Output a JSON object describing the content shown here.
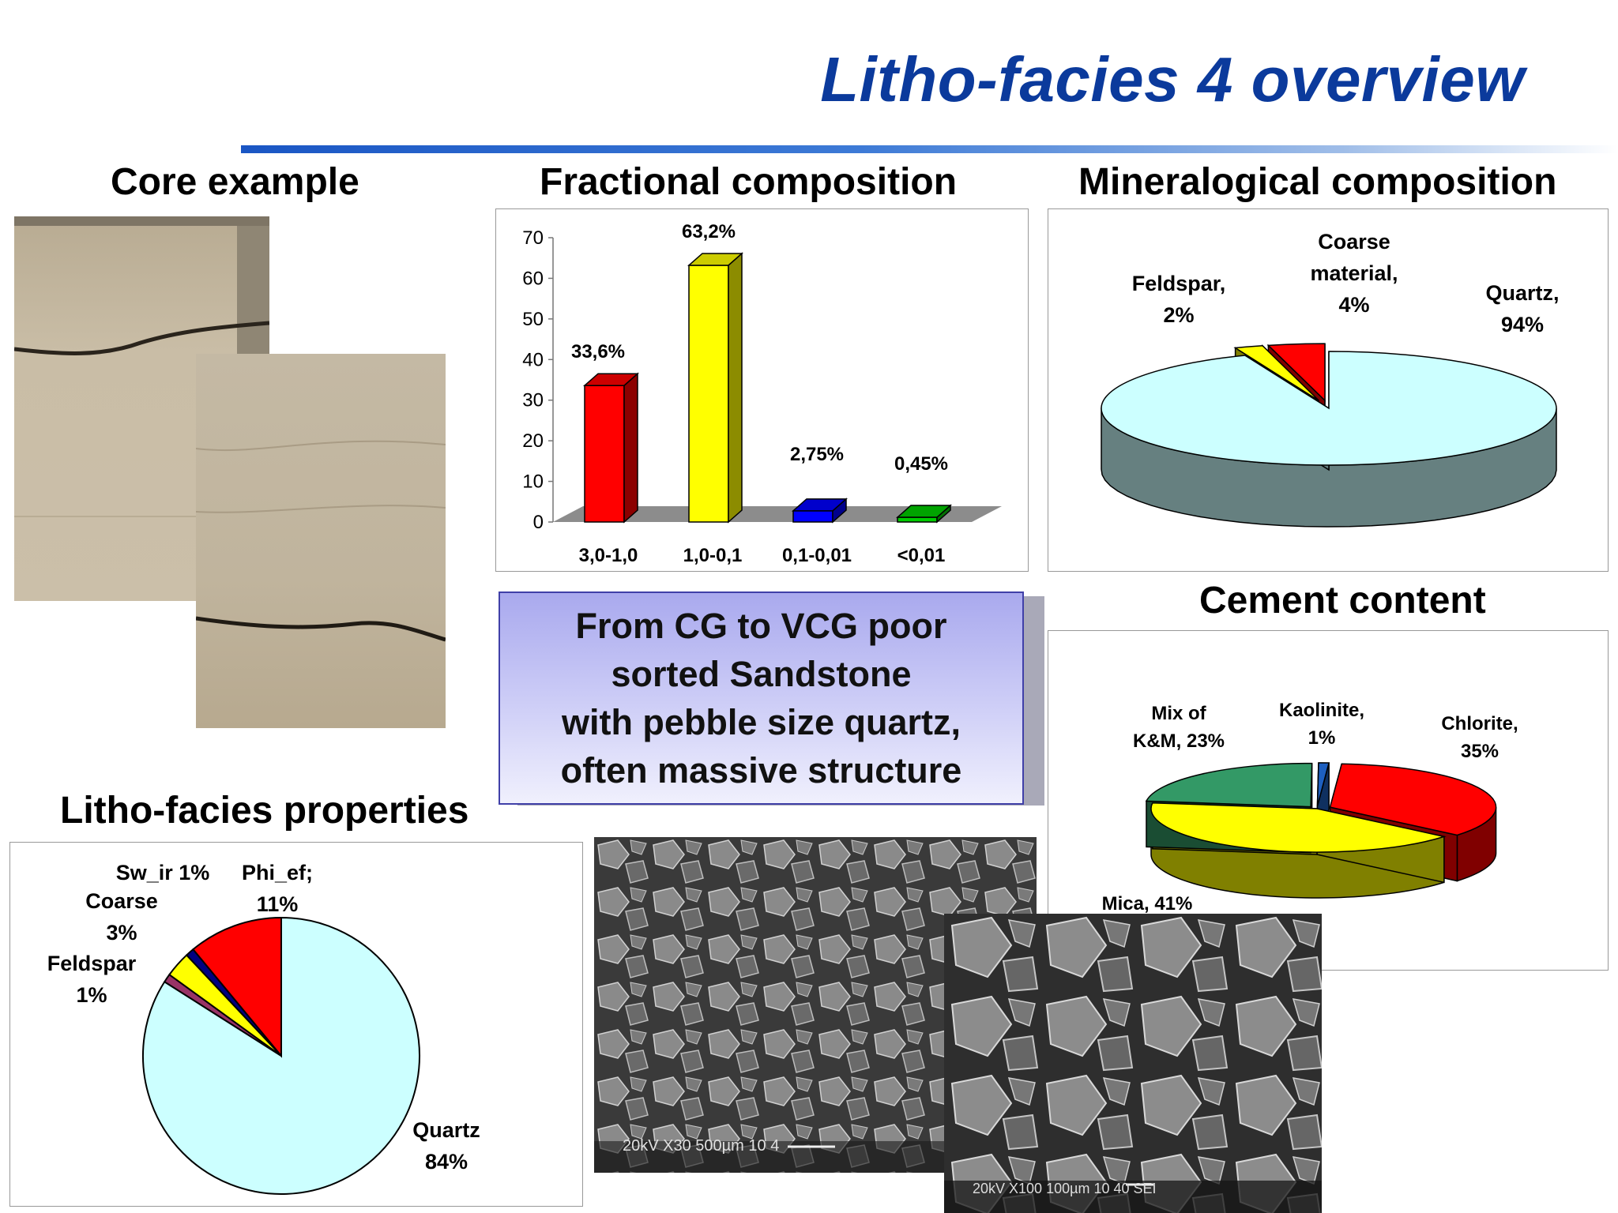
{
  "page": {
    "title": "Litho-facies 4 overview",
    "accent_color": "#0b3a9c"
  },
  "sections": {
    "core_example": "Core example",
    "fractional_composition": "Fractional composition",
    "mineralogical_composition": "Mineralogical composition",
    "cement_content": "Cement content",
    "litho_facies_properties": "Litho-facies properties"
  },
  "callout": {
    "lines": [
      "From CG to VCG poor",
      "sorted Sandstone",
      "with pebble size quartz,",
      "often massive structure"
    ]
  },
  "sem": {
    "left_caption": "20kV     X30  500µm      10 4",
    "right_caption": "20kV    X100  100µm      10 40 SEI"
  },
  "chart_data": [
    {
      "id": "fractional",
      "type": "bar",
      "categories": [
        "3,0-1,0",
        "1,0-0,1",
        "0,1-0,01",
        "<0,01"
      ],
      "values": [
        33.6,
        63.2,
        2.75,
        0.45
      ],
      "data_labels": [
        "33,6%",
        "63,2%",
        "2,75%",
        "0,45%"
      ],
      "colors": [
        "#ff0000",
        "#ffff00",
        "#0000ff",
        "#00cc00"
      ],
      "ylim": [
        0,
        70
      ],
      "yticks": [
        0,
        10,
        20,
        30,
        40,
        50,
        60,
        70
      ],
      "grid": false
    },
    {
      "id": "mineralogical",
      "type": "pie",
      "labels": [
        "Quartz",
        "Feldspar",
        "Coarse material"
      ],
      "values": [
        94,
        2,
        4
      ],
      "data_labels": [
        [
          "Quartz,",
          "94%"
        ],
        [
          "Feldspar,",
          "2%"
        ],
        [
          "Coarse",
          "material,",
          "4%"
        ]
      ],
      "colors": [
        "#ccffff",
        "#ffff00",
        "#ff0000"
      ]
    },
    {
      "id": "cement",
      "type": "pie",
      "labels": [
        "Chlorite",
        "Mica",
        "Mix of K&M",
        "Kaolinite"
      ],
      "values": [
        35,
        41,
        23,
        1
      ],
      "data_labels": [
        [
          "Chlorite,",
          "35%"
        ],
        [
          "Mica, 41%"
        ],
        [
          "Mix of",
          "K&M, 23%"
        ],
        [
          "Kaolinite,",
          "1%"
        ]
      ],
      "colors": [
        "#ff0000",
        "#ffff00",
        "#339966",
        "#1e5fbf"
      ]
    },
    {
      "id": "properties",
      "type": "pie",
      "labels": [
        "Quartz",
        "Feldspar",
        "Coarse",
        "Sw_ir",
        "Phi_ef"
      ],
      "values": [
        84,
        1,
        3,
        1,
        11
      ],
      "data_labels": [
        [
          "Quartz",
          "84%"
        ],
        [
          "Feldspar",
          "1%"
        ],
        [
          "Coarse",
          "3%"
        ],
        [
          "Sw_ir 1%"
        ],
        [
          "Phi_ef;",
          "11%"
        ]
      ],
      "colors": [
        "#ccffff",
        "#993366",
        "#ffff00",
        "#000080",
        "#ff0000"
      ]
    }
  ]
}
